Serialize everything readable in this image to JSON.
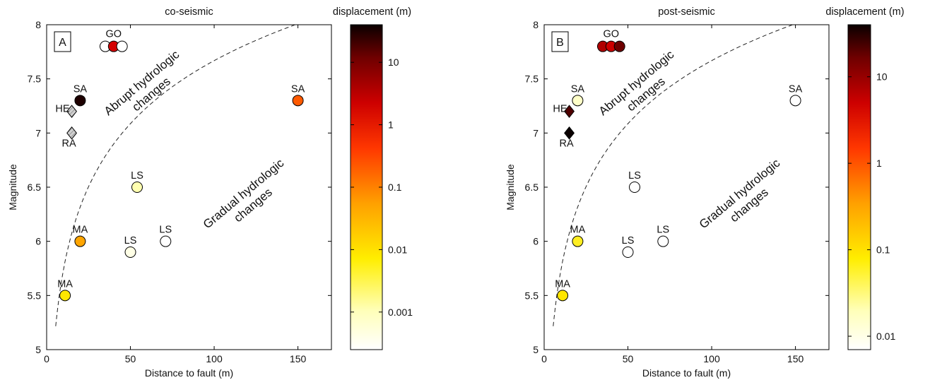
{
  "chart_data": [
    {
      "type": "scatter",
      "title": "co-seismic",
      "panel_label": "A",
      "xlabel": "Distance to fault (m)",
      "ylabel": "Magnitude",
      "xlim": [
        0,
        170
      ],
      "ylim": [
        5,
        8
      ],
      "xticks": [
        0,
        50,
        100,
        150
      ],
      "yticks": [
        5,
        5.5,
        6,
        6.5,
        7,
        7.5,
        8
      ],
      "grid": false,
      "threshold_curve": "dashed",
      "region_labels": [
        {
          "lines": [
            "Abrupt hydrologic",
            "changes"
          ]
        },
        {
          "lines": [
            "Gradual hydrologic",
            "changes"
          ]
        }
      ],
      "colorbar": {
        "title": "displacement (m)",
        "scale": "log",
        "range": [
          0.00025,
          40
        ],
        "ticks": [
          {
            "value": 0.001,
            "label": "0.001"
          },
          {
            "value": 0.01,
            "label": "0.01"
          },
          {
            "value": 0.1,
            "label": "0.1"
          },
          {
            "value": 1,
            "label": "1"
          },
          {
            "value": 10,
            "label": "10"
          }
        ]
      },
      "points": [
        {
          "label": "GO",
          "x": 35,
          "y": 7.8,
          "marker": "circle",
          "color": "#ffffff",
          "show_label": false
        },
        {
          "label": "GO",
          "x": 40,
          "y": 7.8,
          "marker": "circle",
          "color": "#d40000",
          "show_label": true
        },
        {
          "label": "GO",
          "x": 45,
          "y": 7.8,
          "marker": "circle",
          "color": "#ffffff",
          "show_label": false
        },
        {
          "label": "SA",
          "x": 20,
          "y": 7.3,
          "marker": "circle",
          "color": "#1e0000",
          "show_label": true
        },
        {
          "label": "HE",
          "x": 15,
          "y": 7.2,
          "marker": "diamond",
          "color": "#cccccc",
          "hatched": true,
          "show_label": true
        },
        {
          "label": "RA",
          "x": 15,
          "y": 7.0,
          "marker": "diamond",
          "color": "#cccccc",
          "hatched": true,
          "show_label": true
        },
        {
          "label": "SA",
          "x": 150,
          "y": 7.3,
          "marker": "circle",
          "color": "#ff5a00",
          "show_label": true
        },
        {
          "label": "LS",
          "x": 54,
          "y": 6.5,
          "marker": "circle",
          "color": "#ffffb0",
          "show_label": true
        },
        {
          "label": "MA",
          "x": 20,
          "y": 6.0,
          "marker": "circle",
          "color": "#ffa500",
          "show_label": true
        },
        {
          "label": "LS",
          "x": 50,
          "y": 5.9,
          "marker": "circle",
          "color": "#ffffe6",
          "show_label": true
        },
        {
          "label": "LS",
          "x": 71,
          "y": 6.0,
          "marker": "circle",
          "color": "#ffffff",
          "show_label": true
        },
        {
          "label": "MA",
          "x": 11,
          "y": 5.5,
          "marker": "circle",
          "color": "#ffe600",
          "show_label": true
        }
      ]
    },
    {
      "type": "scatter",
      "title": "post-seismic",
      "panel_label": "B",
      "xlabel": "Distance to fault (m)",
      "ylabel": "Magnitude",
      "xlim": [
        0,
        170
      ],
      "ylim": [
        5,
        8
      ],
      "xticks": [
        0,
        50,
        100,
        150
      ],
      "yticks": [
        5,
        5.5,
        6,
        6.5,
        7,
        7.5,
        8
      ],
      "grid": false,
      "threshold_curve": "dashed",
      "region_labels": [
        {
          "lines": [
            "Abrupt hydrologic",
            "changes"
          ]
        },
        {
          "lines": [
            "Gradual hydrologic",
            "changes"
          ]
        }
      ],
      "colorbar": {
        "title": "displacement (m)",
        "scale": "log",
        "range": [
          0.007,
          40
        ],
        "ticks": [
          {
            "value": 0.01,
            "label": "0.01"
          },
          {
            "value": 0.1,
            "label": "0.1"
          },
          {
            "value": 1,
            "label": "1"
          },
          {
            "value": 10,
            "label": "10"
          }
        ]
      },
      "points": [
        {
          "label": "GO",
          "x": 35,
          "y": 7.8,
          "marker": "circle",
          "color": "#b00000",
          "show_label": false
        },
        {
          "label": "GO",
          "x": 40,
          "y": 7.8,
          "marker": "circle",
          "color": "#cc0000",
          "show_label": true
        },
        {
          "label": "GO",
          "x": 45,
          "y": 7.8,
          "marker": "circle",
          "color": "#6e0000",
          "show_label": false
        },
        {
          "label": "SA",
          "x": 20,
          "y": 7.3,
          "marker": "circle",
          "color": "#ffffc8",
          "show_label": true
        },
        {
          "label": "HE",
          "x": 15,
          "y": 7.2,
          "marker": "diamond",
          "color": "#500000",
          "show_label": true
        },
        {
          "label": "RA",
          "x": 15,
          "y": 7.0,
          "marker": "diamond",
          "color": "#0a0000",
          "show_label": true
        },
        {
          "label": "SA",
          "x": 150,
          "y": 7.3,
          "marker": "circle",
          "color": "#ffffff",
          "show_label": true
        },
        {
          "label": "LS",
          "x": 54,
          "y": 6.5,
          "marker": "circle",
          "color": "#ffffff",
          "show_label": true
        },
        {
          "label": "MA",
          "x": 20,
          "y": 6.0,
          "marker": "circle",
          "color": "#ffee22",
          "show_label": true
        },
        {
          "label": "LS",
          "x": 50,
          "y": 5.9,
          "marker": "circle",
          "color": "#ffffff",
          "show_label": true
        },
        {
          "label": "LS",
          "x": 71,
          "y": 6.0,
          "marker": "circle",
          "color": "#ffffff",
          "show_label": true
        },
        {
          "label": "MA",
          "x": 11,
          "y": 5.5,
          "marker": "circle",
          "color": "#ffe600",
          "show_label": true
        }
      ]
    }
  ]
}
